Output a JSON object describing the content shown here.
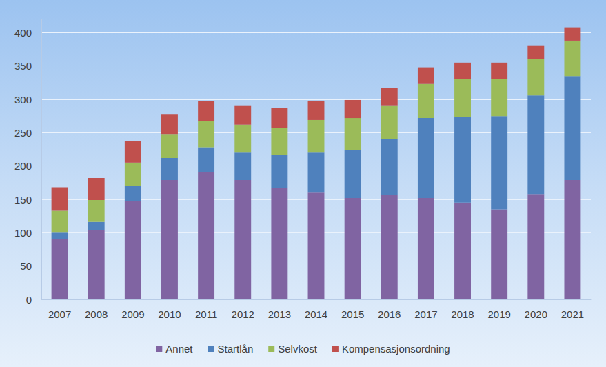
{
  "chart_data": {
    "type": "bar",
    "stacked": true,
    "categories": [
      "2007",
      "2008",
      "2009",
      "2010",
      "2011",
      "2012",
      "2013",
      "2014",
      "2015",
      "2016",
      "2017",
      "2018",
      "2019",
      "2020",
      "2021"
    ],
    "series": [
      {
        "name": "Annet",
        "color": "#8064A2",
        "values": [
          90,
          104,
          147,
          179,
          191,
          179,
          167,
          160,
          152,
          157,
          152,
          145,
          135,
          158,
          179
        ]
      },
      {
        "name": "Startlån",
        "color": "#4F81BD",
        "values": [
          10,
          12,
          23,
          33,
          37,
          41,
          50,
          60,
          72,
          84,
          120,
          129,
          140,
          148,
          156
        ]
      },
      {
        "name": "Selvkost",
        "color": "#9BBB59",
        "values": [
          33,
          33,
          35,
          36,
          39,
          42,
          40,
          49,
          48,
          50,
          51,
          56,
          56,
          54,
          53
        ]
      },
      {
        "name": "Kompensasjonsordning",
        "color": "#C0504D",
        "values": [
          35,
          33,
          32,
          30,
          30,
          29,
          30,
          29,
          27,
          26,
          25,
          25,
          24,
          21,
          20
        ]
      }
    ],
    "ylim": [
      0,
      420
    ],
    "yticks": [
      0,
      50,
      100,
      150,
      200,
      250,
      300,
      350,
      400
    ],
    "grid": true,
    "legend": "bottom"
  }
}
